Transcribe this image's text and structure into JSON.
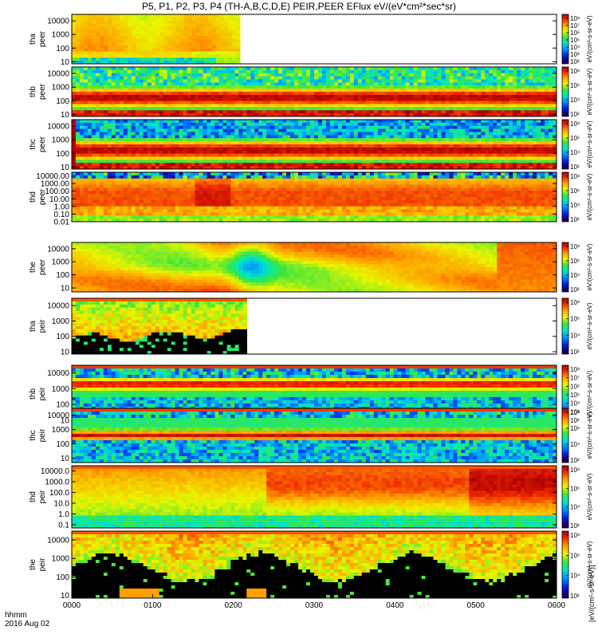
{
  "chart_data": {
    "type": "heatmap",
    "title": "P5, P1, P2, P3, P4 (TH-A,B,C,D,E) PEIR,PEER EFlux eV/(eV*cm²*sec*sr)",
    "x_ticks": [
      "0000",
      "0100",
      "0200",
      "0300",
      "0400",
      "0500",
      "0600"
    ],
    "x_range": [
      "0000",
      "0600"
    ],
    "x_label": "hhmm",
    "date_label": "2016 Aug 02",
    "colorbar_unit_label": "eV/(cm²-s-sr-eV)",
    "colorbar_unit_label_tail": "[eV/(cm²-s-sr-eV)]",
    "panels": [
      {
        "label_top": "tha",
        "label_bottom": "peer",
        "y_ticks": [
          "10",
          "100",
          "1000",
          "10000"
        ],
        "y_range": [
          7,
          30000
        ],
        "colorbar_ticks": [
          "10²",
          "10³",
          "10⁴",
          "10⁵",
          "10⁶",
          "10⁷",
          "10⁸"
        ],
        "data_end": "0205",
        "pattern": "tha_peer"
      },
      {
        "label_top": "thb",
        "label_bottom": "peer",
        "y_ticks": [
          "10",
          "100",
          "1000",
          "10000"
        ],
        "y_range": [
          7,
          30000
        ],
        "colorbar_ticks": [
          "10²",
          "10⁴",
          "10⁶",
          "10⁸"
        ],
        "data_end": "0600",
        "pattern": "thb_peer"
      },
      {
        "label_top": "thc",
        "label_bottom": "peer",
        "y_ticks": [
          "10",
          "100",
          "1000",
          "10000"
        ],
        "y_range": [
          7,
          30000
        ],
        "colorbar_ticks": [
          "10²",
          "10⁴",
          "10⁶",
          "10⁸"
        ],
        "data_end": "0600",
        "pattern": "thc_peer"
      },
      {
        "label_top": "thd",
        "label_bottom": "peer",
        "y_ticks": [
          "0.01",
          "0.10",
          "1.00",
          "10.00",
          "100.00",
          "1000.00",
          "10000.00"
        ],
        "y_range": [
          0.01,
          30000
        ],
        "colorbar_ticks": [
          "10²",
          "10⁴",
          "10⁶",
          "10⁸"
        ],
        "data_end": "0600",
        "pattern": "thd_peer"
      },
      {
        "label_top": "the",
        "label_bottom": "peer",
        "y_ticks": [
          "10",
          "100",
          "1000",
          "10000"
        ],
        "y_range": [
          5,
          30000
        ],
        "colorbar_ticks": [
          "10²",
          "10⁴",
          "10⁶",
          "10⁸"
        ],
        "data_end": "0600",
        "pattern": "the_peer"
      },
      {
        "label_top": "tha",
        "label_bottom": "peir",
        "y_ticks": [
          "10",
          "100",
          "1000",
          "10000"
        ],
        "y_range": [
          7,
          30000
        ],
        "colorbar_ticks": [
          "10²",
          "10⁴",
          "10⁶",
          "10⁸"
        ],
        "data_end": "0210",
        "pattern": "tha_peir"
      },
      {
        "label_top": "thb",
        "label_bottom": "peir",
        "y_ticks": [
          "10",
          "100",
          "1000",
          "10000"
        ],
        "y_range": [
          7,
          30000
        ],
        "colorbar_ticks": [
          "10²",
          "10³",
          "10⁴",
          "10⁵",
          "10⁶",
          "10⁷",
          "10⁸"
        ],
        "data_end": "0600",
        "pattern": "thb_peir"
      },
      {
        "label_top": "thc",
        "label_bottom": "peir",
        "y_ticks": [
          "10",
          "100",
          "1000",
          "10000"
        ],
        "y_range": [
          5,
          30000
        ],
        "colorbar_ticks": [
          "10²",
          "10⁴",
          "10⁶",
          "10⁸"
        ],
        "data_end": "0600",
        "pattern": "thc_peir"
      },
      {
        "label_top": "thd",
        "label_bottom": "peir",
        "y_ticks": [
          "0.1",
          "1.0",
          "10.0",
          "100.0",
          "1000.0",
          "10000.0"
        ],
        "y_range": [
          0.05,
          30000
        ],
        "colorbar_ticks": [
          "10²",
          "10⁴",
          "10⁶",
          "10⁸"
        ],
        "data_end": "0600",
        "pattern": "thd_peir"
      },
      {
        "label_top": "the",
        "label_bottom": "peir",
        "y_ticks": [
          "10",
          "100",
          "1000",
          "10000"
        ],
        "y_range": [
          7,
          30000
        ],
        "colorbar_ticks": [
          "10²",
          "10⁴",
          "10⁶",
          "10⁸"
        ],
        "data_end": "0600",
        "pattern": "the_peir"
      }
    ]
  }
}
